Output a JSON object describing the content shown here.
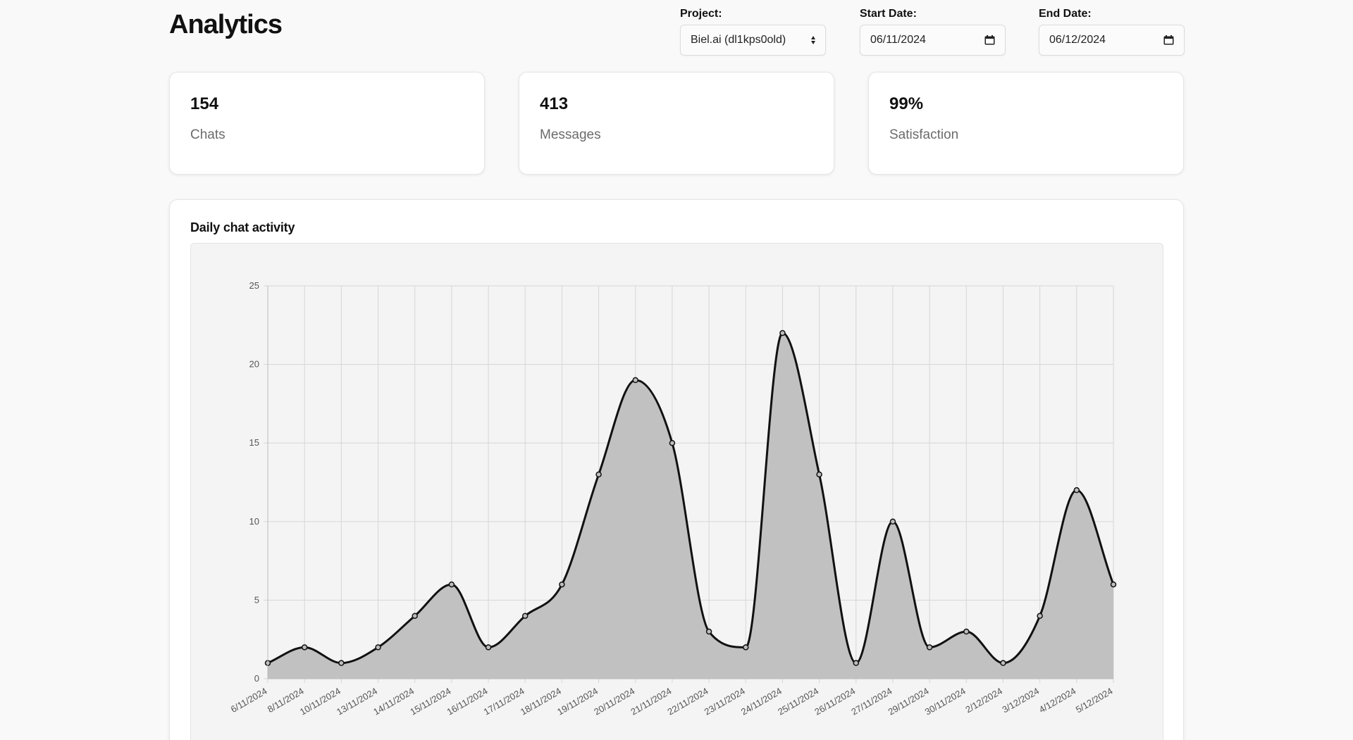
{
  "header": {
    "title": "Analytics"
  },
  "filters": {
    "project": {
      "label": "Project:",
      "value": "Biel.ai (dl1kps0old)"
    },
    "start_date": {
      "label": "Start Date:",
      "value": "06/11/2024"
    },
    "end_date": {
      "label": "End Date:",
      "value": "06/12/2024"
    }
  },
  "stats": [
    {
      "value": "154",
      "label": "Chats"
    },
    {
      "value": "413",
      "label": "Messages"
    },
    {
      "value": "99%",
      "label": "Satisfaction"
    }
  ],
  "chart_panel": {
    "title": "Daily chat activity"
  },
  "chart_data": {
    "type": "area",
    "title": "Daily chat activity",
    "xlabel": "",
    "ylabel": "",
    "ylim": [
      0,
      25
    ],
    "yticks": [
      0,
      5,
      10,
      15,
      20,
      25
    ],
    "grid": true,
    "legend": "none",
    "fill_color": "#c1c1c1",
    "line_color": "#111111",
    "categories": [
      "6/11/2024",
      "8/11/2024",
      "10/11/2024",
      "13/11/2024",
      "14/11/2024",
      "15/11/2024",
      "16/11/2024",
      "17/11/2024",
      "18/11/2024",
      "19/11/2024",
      "20/11/2024",
      "21/11/2024",
      "22/11/2024",
      "23/11/2024",
      "24/11/2024",
      "25/11/2024",
      "26/11/2024",
      "27/11/2024",
      "29/11/2024",
      "30/11/2024",
      "2/12/2024",
      "3/12/2024",
      "4/12/2024",
      "5/12/2024"
    ],
    "values": [
      1,
      2,
      1,
      2,
      4,
      6,
      2,
      4,
      6,
      13,
      19,
      15,
      3,
      2,
      22,
      13,
      1,
      10,
      2,
      3,
      1,
      4,
      12,
      6
    ]
  }
}
